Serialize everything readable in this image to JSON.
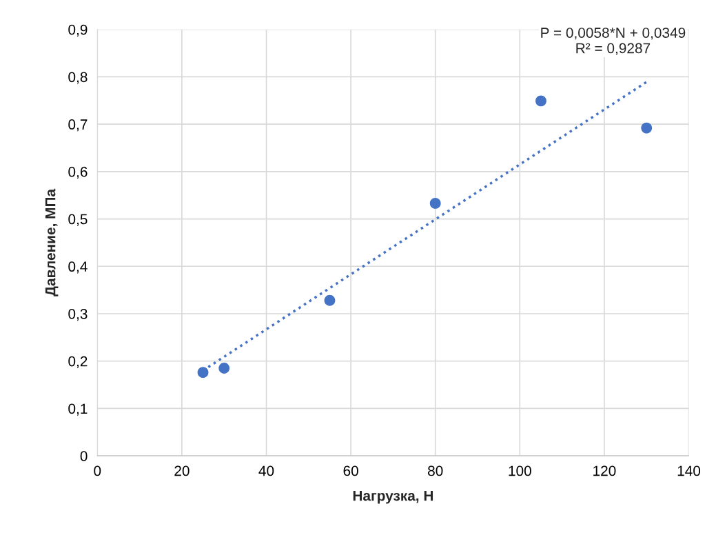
{
  "chart_data": {
    "type": "scatter",
    "xlabel": "Нагрузка, Н",
    "ylabel": "Давление, МПа",
    "series": [
      {
        "color": "#4472c4",
        "x": [
          25,
          30,
          55,
          80,
          105,
          130
        ],
        "values": [
          0.176,
          0.185,
          0.328,
          0.533,
          0.749,
          0.692
        ],
        "marker": "circle"
      },
      {
        "type": "line",
        "color": "#4472c4",
        "x": [
          25,
          130
        ],
        "values": [
          0.18,
          0.789
        ],
        "line_style": "dotted",
        "marker": "none"
      }
    ],
    "xlim": [
      0,
      140
    ],
    "xticks": [
      0,
      20,
      40,
      60,
      80,
      100,
      120,
      140
    ],
    "ylim": [
      0,
      0.9
    ],
    "yticks": [
      0,
      {
        "value": 0.1,
        "label": "0,1"
      },
      {
        "value": 0.2,
        "label": "0,2"
      },
      {
        "value": 0.3,
        "label": "0,3"
      },
      {
        "value": 0.4,
        "label": "0,4"
      },
      {
        "value": 0.5,
        "label": "0,5"
      },
      {
        "value": 0.6,
        "label": "0,6"
      },
      {
        "value": 0.7,
        "label": "0,7"
      },
      {
        "value": 0.8,
        "label": "0,8"
      },
      {
        "value": 0.9,
        "label": "0,9"
      }
    ],
    "grid": true,
    "annotations": [
      "P = 0,0058*N + 0,0349\nR² = 0,9287"
    ]
  }
}
